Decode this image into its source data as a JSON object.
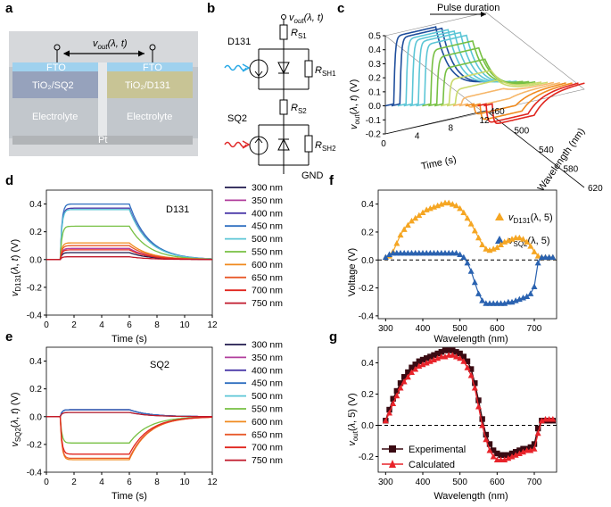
{
  "panel_letters": {
    "a": "a",
    "b": "b",
    "c": "c",
    "d": "d",
    "e": "e",
    "f": "f",
    "g": "g"
  },
  "schematic": {
    "vout_label": "v",
    "vout_sub": "out",
    "vout_args": "(λ, t)",
    "fto_left": "FTO",
    "fto_right": "FTO",
    "tio2_left": "TiO₂/SQ2",
    "tio2_right": "TiO₂/D131",
    "electrolyte_left": "Electrolyte",
    "electrolyte_right": "Electrolyte",
    "pt": "Pt"
  },
  "circuit": {
    "vout_label": "v",
    "vout_sub": "out",
    "vout_args": "(λ, t)",
    "d131": "D131",
    "sq2": "SQ2",
    "rs1": "R",
    "rs1_sub": "S1",
    "rsh1": "R",
    "rsh1_sub": "SH1",
    "rs2": "R",
    "rs2_sub": "S2",
    "rsh2": "R",
    "rsh2_sub": "SH2",
    "gnd": "GND"
  },
  "colors": {
    "300": "#1f1a4d",
    "350": "#b13e9c",
    "400": "#4b3aa8",
    "450": "#2f6fc0",
    "500": "#5cc6d6",
    "550": "#77c043",
    "600": "#f08a1e",
    "650": "#e85a2b",
    "700": "#e0261f",
    "750": "#c0182a",
    "d131_marker": "#f5a623",
    "sq2_marker": "#2a62b0",
    "exp": "#3a0a12",
    "calc": "#e8232a"
  },
  "legend_nm": [
    "300 nm",
    "350 nm",
    "400 nm",
    "450 nm",
    "500 nm",
    "550 nm",
    "600 nm",
    "650 nm",
    "700 nm",
    "750 nm"
  ],
  "chart_data": [
    {
      "panel": "c",
      "type": "line",
      "title": "",
      "annotation": "Pulse duration",
      "xlabel": "Time (s)",
      "ylabel": "v_out(λ, t) (V)",
      "zlabel": "Wavelength (nm)",
      "ylim": [
        -0.2,
        0.5
      ],
      "yticks": [
        "-0.2",
        "-0.1",
        "0.0",
        "0.1",
        "0.2",
        "0.3",
        "0.4",
        "0.5"
      ],
      "xticks": [
        "0",
        "4",
        "8",
        "12"
      ],
      "zticks": [
        "460",
        "500",
        "540",
        "580",
        "620"
      ],
      "series": [
        {
          "wavelength": 460,
          "plateau": 0.48
        },
        {
          "wavelength": 470,
          "plateau": 0.47
        },
        {
          "wavelength": 480,
          "plateau": 0.46
        },
        {
          "wavelength": 490,
          "plateau": 0.45
        },
        {
          "wavelength": 500,
          "plateau": 0.44
        },
        {
          "wavelength": 510,
          "plateau": 0.42
        },
        {
          "wavelength": 520,
          "plateau": 0.38
        },
        {
          "wavelength": 530,
          "plateau": 0.33
        },
        {
          "wavelength": 540,
          "plateau": 0.25
        },
        {
          "wavelength": 550,
          "plateau": 0.17
        },
        {
          "wavelength": 560,
          "plateau": 0.1
        },
        {
          "wavelength": 570,
          "plateau": 0.04
        },
        {
          "wavelength": 580,
          "plateau": -0.03
        },
        {
          "wavelength": 590,
          "plateau": -0.08
        },
        {
          "wavelength": 600,
          "plateau": -0.12
        },
        {
          "wavelength": 610,
          "plateau": -0.14
        },
        {
          "wavelength": 620,
          "plateau": -0.15
        }
      ]
    },
    {
      "panel": "d",
      "type": "line",
      "label": "D131",
      "xlabel": "Time (s)",
      "ylabel": "v_D131(λ, t) (V)",
      "xlim": [
        0,
        12
      ],
      "ylim": [
        -0.4,
        0.5
      ],
      "xticks": [
        "0",
        "2",
        "4",
        "6",
        "8",
        "10",
        "12"
      ],
      "yticks": [
        "-0.4",
        "-0.2",
        "0.0",
        "0.2",
        "0.4"
      ],
      "pulse_on": 1,
      "pulse_off": 6,
      "series": [
        {
          "name": "300 nm",
          "plateau": 0.05
        },
        {
          "name": "350 nm",
          "plateau": 0.08
        },
        {
          "name": "400 nm",
          "plateau": 0.37
        },
        {
          "name": "450 nm",
          "plateau": 0.4
        },
        {
          "name": "500 nm",
          "plateau": 0.36
        },
        {
          "name": "550 nm",
          "plateau": 0.24
        },
        {
          "name": "600 nm",
          "plateau": 0.12
        },
        {
          "name": "650 nm",
          "plateau": 0.1
        },
        {
          "name": "700 nm",
          "plateau": 0.07
        },
        {
          "name": "750 nm",
          "plateau": 0.02
        }
      ]
    },
    {
      "panel": "e",
      "type": "line",
      "label": "SQ2",
      "xlabel": "Time (s)",
      "ylabel": "v_SQ2(λ, t) (V)",
      "xlim": [
        0,
        12
      ],
      "ylim": [
        -0.4,
        0.5
      ],
      "xticks": [
        "0",
        "2",
        "4",
        "6",
        "8",
        "10",
        "12"
      ],
      "yticks": [
        "-0.4",
        "-0.2",
        "0.0",
        "0.2",
        "0.4"
      ],
      "pulse_on": 1,
      "pulse_off": 6,
      "series": [
        {
          "name": "300 nm",
          "plateau": 0.05
        },
        {
          "name": "350 nm",
          "plateau": 0.05
        },
        {
          "name": "400 nm",
          "plateau": 0.05
        },
        {
          "name": "450 nm",
          "plateau": 0.05
        },
        {
          "name": "500 nm",
          "plateau": 0.03
        },
        {
          "name": "550 nm",
          "plateau": -0.19
        },
        {
          "name": "600 nm",
          "plateau": -0.31
        },
        {
          "name": "650 nm",
          "plateau": -0.3
        },
        {
          "name": "700 nm",
          "plateau": -0.27
        },
        {
          "name": "750 nm",
          "plateau": 0.03
        }
      ]
    },
    {
      "panel": "f",
      "type": "scatter",
      "xlabel": "Wavelength (nm)",
      "ylabel": "Voltage (V)",
      "xlim": [
        280,
        760
      ],
      "ylim": [
        -0.42,
        0.5
      ],
      "xticks": [
        "300",
        "400",
        "500",
        "600",
        "700"
      ],
      "yticks": [
        "-0.4",
        "-0.2",
        "0.0",
        "0.2",
        "0.4"
      ],
      "legend": [
        {
          "label": "v",
          "sub": "D131",
          "args": "(λ, 5)"
        },
        {
          "label": "v",
          "sub": "SQ2",
          "args": "(λ, 5)"
        }
      ],
      "x": [
        300,
        310,
        320,
        330,
        340,
        350,
        360,
        370,
        380,
        390,
        400,
        410,
        420,
        430,
        440,
        450,
        460,
        470,
        480,
        490,
        500,
        510,
        520,
        530,
        540,
        550,
        560,
        570,
        580,
        590,
        600,
        610,
        620,
        630,
        640,
        650,
        660,
        670,
        680,
        690,
        700,
        710,
        720,
        730,
        740,
        750
      ],
      "series": [
        {
          "name": "D131",
          "values": [
            0.02,
            0.03,
            0.06,
            0.12,
            0.18,
            0.22,
            0.25,
            0.28,
            0.3,
            0.32,
            0.34,
            0.36,
            0.37,
            0.38,
            0.39,
            0.4,
            0.41,
            0.41,
            0.4,
            0.39,
            0.37,
            0.34,
            0.3,
            0.26,
            0.21,
            0.16,
            0.11,
            0.08,
            0.07,
            0.08,
            0.09,
            0.11,
            0.13,
            0.14,
            0.15,
            0.16,
            0.16,
            0.15,
            0.13,
            0.1,
            0.06,
            0.03,
            0.02,
            0.02,
            0.02,
            0.02
          ]
        },
        {
          "name": "SQ2",
          "values": [
            0.02,
            0.04,
            0.05,
            0.05,
            0.05,
            0.05,
            0.05,
            0.05,
            0.05,
            0.05,
            0.05,
            0.05,
            0.05,
            0.05,
            0.05,
            0.05,
            0.05,
            0.05,
            0.05,
            0.05,
            0.04,
            0.02,
            -0.02,
            -0.08,
            -0.16,
            -0.24,
            -0.29,
            -0.31,
            -0.31,
            -0.31,
            -0.31,
            -0.31,
            -0.31,
            -0.3,
            -0.3,
            -0.29,
            -0.28,
            -0.27,
            -0.26,
            -0.24,
            -0.19,
            -0.02,
            0.02,
            0.02,
            0.02,
            0.02
          ]
        }
      ]
    },
    {
      "panel": "g",
      "type": "line",
      "xlabel": "Wavelength (nm)",
      "ylabel": "v_out(λ, 5) (V)",
      "xlim": [
        280,
        760
      ],
      "ylim": [
        -0.3,
        0.5
      ],
      "xticks": [
        "300",
        "400",
        "500",
        "600",
        "700"
      ],
      "yticks": [
        "-0.2",
        "0.0",
        "0.2",
        "0.4"
      ],
      "legend": [
        "Experimental",
        "Calculated"
      ],
      "x": [
        300,
        310,
        320,
        330,
        340,
        350,
        360,
        370,
        380,
        390,
        400,
        410,
        420,
        430,
        440,
        450,
        460,
        470,
        480,
        490,
        500,
        510,
        520,
        530,
        540,
        550,
        560,
        570,
        580,
        590,
        600,
        610,
        620,
        630,
        640,
        650,
        660,
        670,
        680,
        690,
        700,
        710,
        720,
        730,
        740,
        750
      ],
      "series": [
        {
          "name": "Experimental",
          "values": [
            0.03,
            0.1,
            0.17,
            0.22,
            0.27,
            0.31,
            0.34,
            0.37,
            0.39,
            0.41,
            0.42,
            0.43,
            0.44,
            0.45,
            0.46,
            0.47,
            0.48,
            0.48,
            0.48,
            0.47,
            0.46,
            0.44,
            0.41,
            0.36,
            0.27,
            0.16,
            0.04,
            -0.06,
            -0.12,
            -0.16,
            -0.18,
            -0.19,
            -0.19,
            -0.19,
            -0.18,
            -0.17,
            -0.16,
            -0.15,
            -0.15,
            -0.14,
            -0.12,
            -0.02,
            0.03,
            0.03,
            0.03,
            0.03
          ]
        },
        {
          "name": "Calculated",
          "values": [
            0.03,
            0.08,
            0.14,
            0.19,
            0.24,
            0.28,
            0.31,
            0.34,
            0.36,
            0.38,
            0.39,
            0.4,
            0.41,
            0.42,
            0.43,
            0.44,
            0.44,
            0.45,
            0.45,
            0.44,
            0.43,
            0.41,
            0.37,
            0.32,
            0.24,
            0.12,
            0.0,
            -0.09,
            -0.16,
            -0.2,
            -0.22,
            -0.22,
            -0.22,
            -0.21,
            -0.2,
            -0.19,
            -0.18,
            -0.17,
            -0.16,
            -0.16,
            -0.15,
            -0.05,
            0.03,
            0.04,
            0.04,
            0.04
          ]
        }
      ]
    }
  ]
}
